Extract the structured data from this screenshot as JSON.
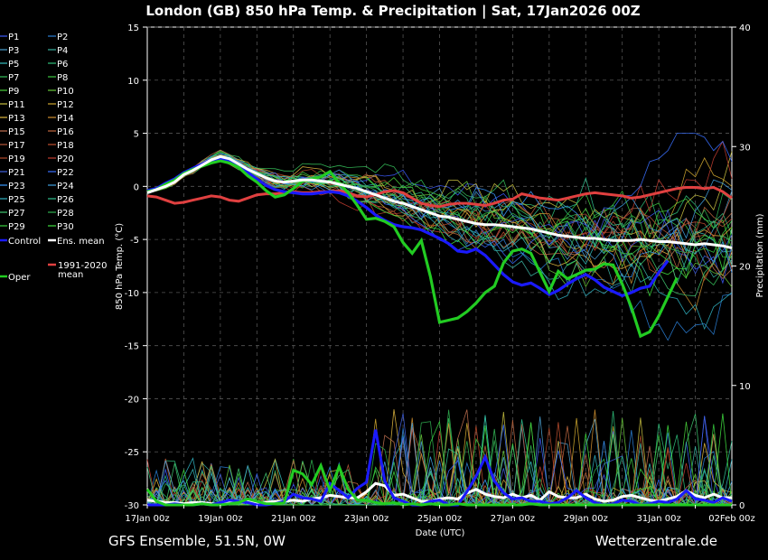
{
  "header": {
    "title": "London  (GB)  850 hPa Temp. & Precipitation | Sat, 17Jan2026 00Z"
  },
  "footer": {
    "left": "GFS Ensemble, 51.5N, 0W",
    "right": "Wetterzentrale.de"
  },
  "legend": {
    "members": [
      "P1",
      "P2",
      "P3",
      "P4",
      "P5",
      "P6",
      "P7",
      "P8",
      "P9",
      "P10",
      "P11",
      "P12",
      "P13",
      "P14",
      "P15",
      "P16",
      "P17",
      "P18",
      "P19",
      "P20",
      "P21",
      "P22",
      "P23",
      "P24",
      "P25",
      "P26",
      "P27",
      "P28",
      "P29",
      "P30"
    ],
    "control": "Control",
    "ens_mean": "Ens. mean",
    "oper": "Oper",
    "clim_line1": "1991-2020",
    "clim_line2": "mean"
  },
  "colors": {
    "background": "#000000",
    "control": "#1a1aff",
    "ens_mean": "#ffffff",
    "oper": "#22cc22",
    "climatology": "#e04040",
    "grid": "#555555",
    "member_palette": [
      "#3d5cff",
      "#2a7fd6",
      "#4aa0d0",
      "#3ab0a0",
      "#36c0c0",
      "#2fc07a",
      "#35c05a",
      "#3cc840",
      "#48d03a",
      "#68c83a",
      "#c8c040",
      "#d0a830",
      "#e0b840",
      "#d09030",
      "#c07050",
      "#c06840",
      "#b85838",
      "#c05030",
      "#b04828",
      "#c03c30",
      "#4060e0",
      "#3a70ff",
      "#3a9aff",
      "#40a0e0",
      "#30b0c0",
      "#30c090",
      "#40c870",
      "#30b050",
      "#38d040",
      "#40e040"
    ]
  },
  "chart_data": {
    "type": "line",
    "title": "London  (GB)  850 hPa Temp. & Precipitation | Sat, 17Jan2026 00Z",
    "xlabel": "Date (UTC)",
    "ylabel": "850 hPa Temp. (°C)",
    "y2label": "Precipitation (mm)",
    "x_ticks": [
      "17Jan 00z",
      "19Jan 00z",
      "21Jan 00z",
      "23Jan 00z",
      "25Jan 00z",
      "27Jan 00z",
      "29Jan 00z",
      "31Jan 00z",
      "02Feb 00z"
    ],
    "x_range_days": [
      0,
      16
    ],
    "step_hours": 6,
    "ylim": [
      -30,
      15
    ],
    "y_ticks": [
      15,
      10,
      5,
      0,
      -5,
      -10,
      -15,
      -20,
      -25,
      -30
    ],
    "y2lim": [
      0,
      40
    ],
    "y2_ticks": [
      40,
      30,
      20,
      10,
      0
    ],
    "grid": true,
    "ens_mean_temp": [
      -0.6,
      -0.3,
      0.0,
      0.4,
      1.1,
      1.5,
      2.0,
      2.5,
      2.8,
      2.6,
      2.1,
      1.6,
      1.2,
      0.8,
      0.5,
      0.4,
      0.5,
      0.6,
      0.6,
      0.5,
      0.4,
      0.2,
      0.0,
      -0.2,
      -0.5,
      -0.8,
      -1.1,
      -1.4,
      -1.6,
      -1.9,
      -2.2,
      -2.5,
      -2.8,
      -2.9,
      -3.1,
      -3.3,
      -3.5,
      -3.6,
      -3.6,
      -3.7,
      -3.8,
      -3.9,
      -4.0,
      -4.2,
      -4.4,
      -4.6,
      -4.7,
      -4.8,
      -4.9,
      -4.9,
      -5.0,
      -5.1,
      -5.1,
      -5.1,
      -5.0,
      -5.1,
      -5.2,
      -5.2,
      -5.3,
      -5.4,
      -5.5,
      -5.4,
      -5.5,
      -5.6,
      -5.8
    ],
    "oper_temp": [
      -0.5,
      -0.3,
      0.2,
      0.6,
      1.2,
      1.6,
      1.9,
      2.2,
      2.4,
      2.2,
      1.8,
      1.0,
      0.4,
      -0.4,
      -1.0,
      -0.8,
      -0.2,
      0.5,
      0.7,
      0.9,
      1.4,
      0.3,
      -0.6,
      -1.8,
      -3.1,
      -3.0,
      -3.3,
      -3.8,
      -5.3,
      -6.3,
      -5.1,
      -8.5,
      -12.8,
      -12.6,
      -12.4,
      -11.8,
      -11.0,
      -10.0,
      -9.4,
      -7.2,
      -6.1,
      -5.9,
      -6.3,
      -8.1,
      -9.9,
      -8.0,
      -8.7,
      -8.3,
      -7.9,
      -7.8,
      -7.3,
      -7.4,
      -9.2,
      -11.4,
      -14.1,
      -13.7,
      -12.2,
      -10.4,
      -8.6
    ],
    "control_temp": [
      -0.4,
      -0.2,
      0.3,
      0.7,
      1.3,
      1.7,
      2.1,
      2.5,
      2.6,
      2.4,
      2.0,
      1.3,
      0.7,
      0.1,
      -0.3,
      -0.5,
      -0.6,
      -0.7,
      -0.7,
      -0.6,
      -0.5,
      -0.6,
      -0.9,
      -1.4,
      -2.0,
      -2.7,
      -3.2,
      -3.6,
      -3.8,
      -3.9,
      -4.1,
      -4.5,
      -4.9,
      -5.4,
      -6.1,
      -6.2,
      -5.9,
      -6.5,
      -7.4,
      -8.3,
      -9.0,
      -9.3,
      -9.1,
      -9.6,
      -10.2,
      -9.8,
      -9.2,
      -8.7,
      -8.3,
      -8.8,
      -9.5,
      -9.9,
      -10.3,
      -10.0,
      -9.6,
      -9.4,
      -8.1,
      -7.0
    ],
    "climatology_temp": [
      -0.9,
      -1.0,
      -1.3,
      -1.6,
      -1.5,
      -1.3,
      -1.1,
      -0.9,
      -1.0,
      -1.3,
      -1.4,
      -1.1,
      -0.8,
      -0.7,
      -0.7,
      -0.6,
      -0.5,
      -0.6,
      -0.6,
      -0.5,
      -0.5,
      -0.4,
      -0.6,
      -0.9,
      -1.0,
      -0.8,
      -0.5,
      -0.4,
      -0.6,
      -1.1,
      -1.6,
      -1.8,
      -1.9,
      -1.7,
      -1.6,
      -1.6,
      -1.7,
      -1.8,
      -1.6,
      -1.3,
      -1.2,
      -0.7,
      -0.9,
      -1.1,
      -1.2,
      -1.3,
      -1.1,
      -0.9,
      -0.7,
      -0.6,
      -0.7,
      -0.8,
      -0.9,
      -1.1,
      -1.0,
      -0.8,
      -0.6,
      -0.4,
      -0.2,
      -0.1,
      -0.1,
      -0.2,
      -0.1,
      -0.5,
      -1.1
    ],
    "ens_mean_precip": [
      0.4,
      0.3,
      0.2,
      0.2,
      0.1,
      0.2,
      0.2,
      0.1,
      0.1,
      0.2,
      0.3,
      0.3,
      0.2,
      0.2,
      0.3,
      0.3,
      0.4,
      0.3,
      0.5,
      0.6,
      0.8,
      0.7,
      0.6,
      0.6,
      1.1,
      1.8,
      1.6,
      0.8,
      0.9,
      0.6,
      0.3,
      0.3,
      0.5,
      0.6,
      0.5,
      1.0,
      1.3,
      0.9,
      0.7,
      0.6,
      0.9,
      0.6,
      0.8,
      0.4,
      1.1,
      0.7,
      0.6,
      0.6,
      0.9,
      0.5,
      0.3,
      0.4,
      0.7,
      0.8,
      0.6,
      0.4,
      0.3,
      0.5,
      0.7,
      1.2,
      0.8,
      0.6,
      0.9,
      0.6,
      0.6
    ],
    "control_precip": [
      0.0,
      0.0,
      0.0,
      0.1,
      0.0,
      0.0,
      0.1,
      0.0,
      0.2,
      0.4,
      0.3,
      0.2,
      0.0,
      0.0,
      0.1,
      0.3,
      0.9,
      0.6,
      0.5,
      0.3,
      1.8,
      1.2,
      0.6,
      1.4,
      1.9,
      6.3,
      2.0,
      0.6,
      0.3,
      0.0,
      0.0,
      0.3,
      0.4,
      0.0,
      0.0,
      1.1,
      2.4,
      4.0,
      2.0,
      1.0,
      0.5,
      0.6,
      0.3,
      0.3,
      0.1,
      0.2,
      0.6,
      1.2,
      0.6,
      0.2,
      0.0,
      0.1,
      0.4,
      0.3,
      0.0,
      0.1,
      0.3,
      0.2,
      0.5,
      1.2,
      0.5,
      0.4,
      0.2,
      0.6,
      0.3
    ],
    "oper_precip": [
      1.3,
      0.3,
      0.0,
      0.0,
      0.0,
      0.0,
      0.1,
      0.0,
      0.0,
      0.1,
      0.2,
      0.5,
      0.3,
      0.1,
      0.1,
      0.2,
      2.9,
      2.6,
      1.7,
      3.3,
      1.2,
      3.2,
      1.3,
      0.4,
      0.4,
      0.2,
      0.1,
      0.2,
      0.0,
      0.1,
      0.0,
      0.1,
      0.0,
      0.0,
      0.1,
      0.0,
      0.0,
      0.0,
      0.0,
      0.0,
      0.0,
      0.0,
      0.1,
      0.0,
      0.0,
      0.0,
      0.0,
      0.0,
      0.0,
      0.0,
      0.0,
      0.0,
      0.0,
      0.0,
      0.0,
      0.0,
      0.0,
      0.0,
      0.0,
      0.0,
      0.0,
      0.0,
      0.0,
      0.0,
      0.0
    ],
    "members_shown": 30
  }
}
